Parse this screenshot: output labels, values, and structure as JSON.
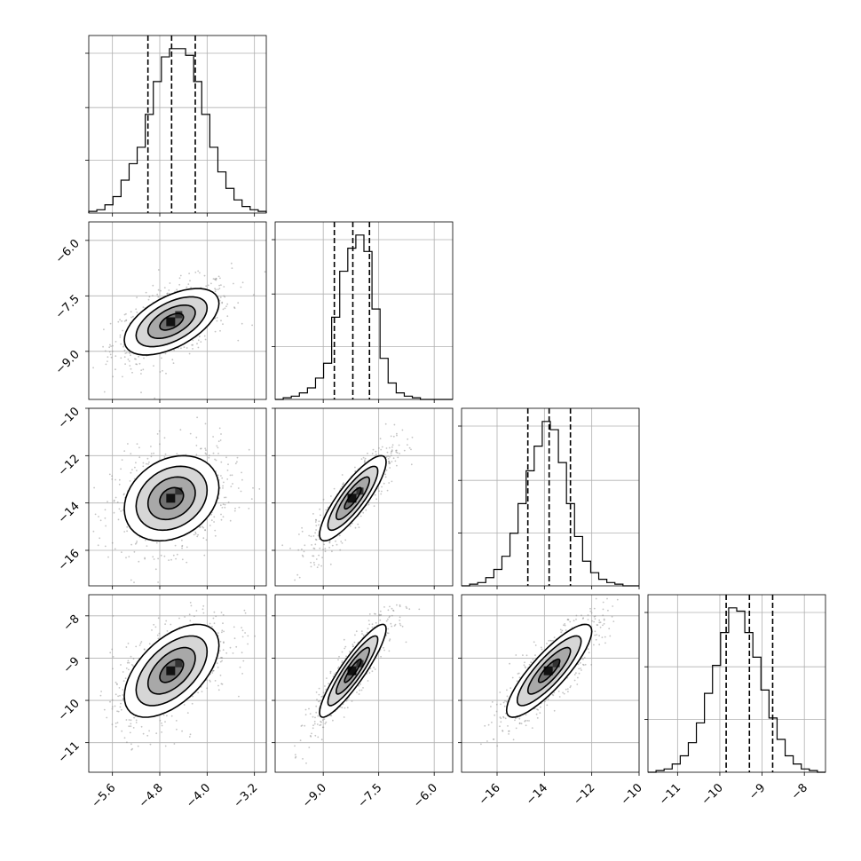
{
  "chart_data": {
    "type": "corner",
    "grid": true,
    "params": [
      {
        "range": [
          -6.0,
          -3.0
        ],
        "ticks": [
          -5.6,
          -4.8,
          -4.0,
          -3.2
        ],
        "tick_labels": [
          "−5.6",
          "−4.8",
          "−4.0",
          "−3.2"
        ],
        "quantiles": [
          -5.0,
          -4.6,
          -4.2
        ],
        "hist_edges": [
          -6.0,
          -3.0
        ],
        "hist": [
          0.01,
          0.02,
          0.05,
          0.1,
          0.2,
          0.3,
          0.4,
          0.6,
          0.8,
          0.95,
          1.0,
          1.0,
          0.96,
          0.8,
          0.6,
          0.4,
          0.25,
          0.15,
          0.08,
          0.04,
          0.02,
          0.01
        ],
        "hist_ymax": 1.0,
        "mean": -4.6,
        "sd": 0.4
      },
      {
        "range": [
          -10.3,
          -5.5
        ],
        "ticks": [
          -9.0,
          -7.5,
          -6.0
        ],
        "tick_labels": [
          "−9.0",
          "−7.5",
          "−6.0"
        ],
        "quantiles": [
          -8.7,
          -8.2,
          -7.75
        ],
        "hist_edges": [
          -10.3,
          -5.5
        ],
        "hist": [
          0.0,
          0.01,
          0.02,
          0.04,
          0.07,
          0.13,
          0.22,
          0.5,
          0.78,
          0.92,
          1.0,
          0.9,
          0.55,
          0.25,
          0.1,
          0.04,
          0.02,
          0.01,
          0.0,
          0.0,
          0.0,
          0.0
        ],
        "hist_ymax": 1.0,
        "mean": -8.2,
        "sd": 0.45
      },
      {
        "range": [
          -17.5,
          -10.0
        ],
        "ticks": [
          -16,
          -14,
          -12,
          -10
        ],
        "tick_labels": [
          "−16",
          "−14",
          "−12",
          "−10"
        ],
        "quantiles": [
          -14.7,
          -13.8,
          -12.9
        ],
        "hist_edges": [
          -17.5,
          -10.0
        ],
        "hist": [
          0.0,
          0.01,
          0.02,
          0.05,
          0.1,
          0.18,
          0.32,
          0.5,
          0.7,
          0.85,
          1.0,
          0.95,
          0.75,
          0.5,
          0.3,
          0.15,
          0.08,
          0.04,
          0.02,
          0.01,
          0.0,
          0.0
        ],
        "hist_ymax": 1.0,
        "mean": -13.8,
        "sd": 0.9
      },
      {
        "range": [
          -11.7,
          -7.5
        ],
        "ticks": [
          -11,
          -10,
          -9,
          -8
        ],
        "tick_labels": [
          "−11",
          "−10",
          "−9",
          "−8"
        ],
        "quantiles": [
          -9.85,
          -9.3,
          -8.75
        ],
        "hist_edges": [
          -11.7,
          -7.5
        ],
        "hist": [
          0.0,
          0.01,
          0.02,
          0.05,
          0.1,
          0.18,
          0.3,
          0.48,
          0.65,
          0.85,
          1.0,
          0.98,
          0.85,
          0.7,
          0.5,
          0.33,
          0.2,
          0.1,
          0.05,
          0.02,
          0.01,
          0.0
        ],
        "hist_ymax": 1.0,
        "mean": -9.3,
        "sd": 0.55
      }
    ],
    "correlations": {
      "1_0": 0.55,
      "2_0": 0.25,
      "2_1": 0.85,
      "3_0": 0.55,
      "3_1": 0.9,
      "3_2": 0.85
    },
    "contour_levels": [
      0.5,
      1.0,
      1.5,
      2.0
    ]
  }
}
